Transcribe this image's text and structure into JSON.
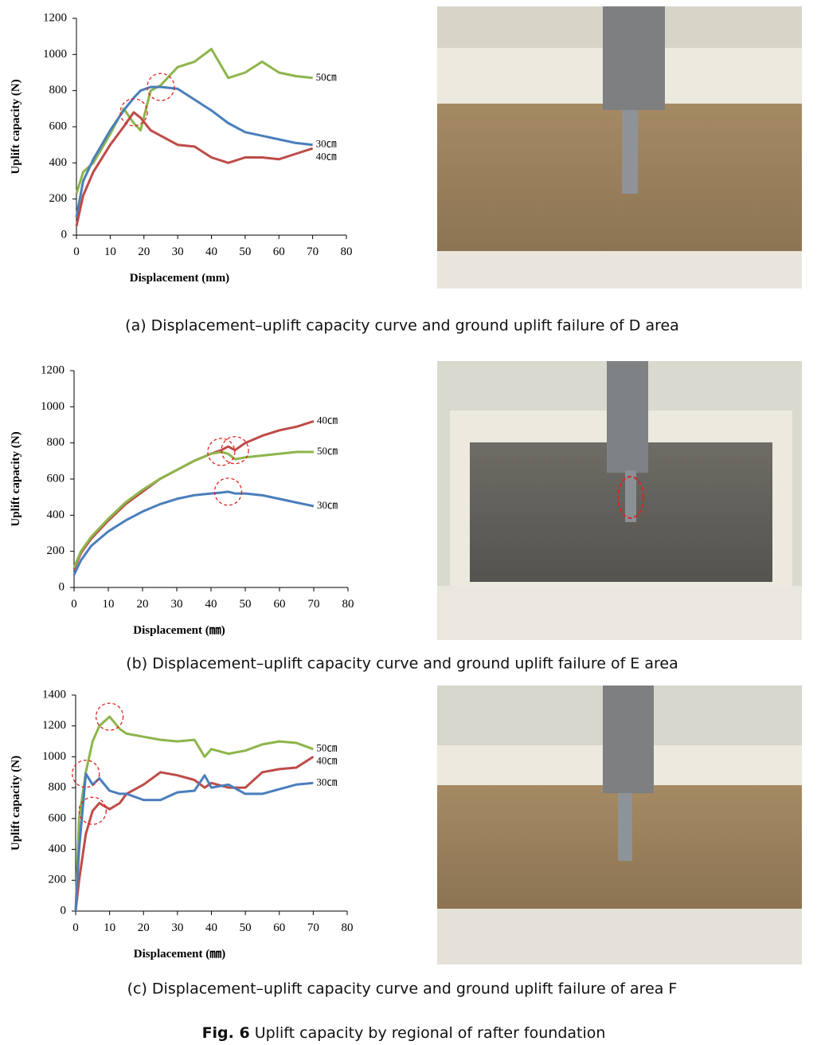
{
  "chart_data": [
    {
      "type": "line",
      "xlabel": "Displacement (mm)",
      "ylabel": "Uplift capacity (N)",
      "x": [
        0,
        2,
        5,
        10,
        14,
        17,
        19,
        22,
        25,
        30,
        35,
        40,
        45,
        50,
        55,
        60,
        65,
        70
      ],
      "xlim": [
        0,
        80
      ],
      "xticks": [
        0,
        10,
        20,
        30,
        40,
        50,
        60,
        70,
        80
      ],
      "ylim": [
        0,
        1200
      ],
      "yticks": [
        0,
        200,
        400,
        600,
        800,
        1000,
        1200
      ],
      "series": [
        {
          "name": "50㎝",
          "color": "#8db54a",
          "values": [
            230,
            350,
            400,
            560,
            700,
            620,
            580,
            800,
            830,
            930,
            960,
            1030,
            870,
            900,
            960,
            900,
            880,
            870
          ]
        },
        {
          "name": "30㎝",
          "color": "#4a7ebb",
          "values": [
            100,
            300,
            420,
            580,
            690,
            760,
            800,
            820,
            820,
            810,
            750,
            690,
            620,
            570,
            550,
            530,
            510,
            500
          ]
        },
        {
          "name": "40㎝",
          "color": "#be4b48",
          "values": [
            50,
            220,
            350,
            500,
            600,
            680,
            650,
            580,
            550,
            500,
            490,
            430,
            400,
            430,
            430,
            420,
            450,
            480
          ]
        }
      ]
    },
    {
      "type": "line",
      "xlabel": "Displacement (㎜)",
      "ylabel": "Uplift capacity (N)",
      "x": [
        0,
        2,
        5,
        10,
        15,
        20,
        25,
        30,
        35,
        40,
        43,
        45,
        47,
        50,
        55,
        60,
        65,
        70
      ],
      "xlim": [
        0,
        80
      ],
      "xticks": [
        0,
        10,
        20,
        30,
        40,
        50,
        60,
        70,
        80
      ],
      "ylim": [
        0,
        1200
      ],
      "yticks": [
        0,
        200,
        400,
        600,
        800,
        1000,
        1200
      ],
      "series": [
        {
          "name": "40㎝",
          "color": "#be4b48",
          "values": [
            100,
            190,
            270,
            370,
            460,
            530,
            600,
            650,
            700,
            740,
            760,
            780,
            760,
            800,
            840,
            870,
            890,
            920
          ]
        },
        {
          "name": "50㎝",
          "color": "#8db54a",
          "values": [
            110,
            200,
            280,
            380,
            470,
            540,
            600,
            650,
            700,
            740,
            750,
            740,
            710,
            720,
            730,
            740,
            750,
            750
          ]
        },
        {
          "name": "30㎝",
          "color": "#4a7ebb",
          "values": [
            70,
            150,
            230,
            310,
            370,
            420,
            460,
            490,
            510,
            520,
            525,
            530,
            520,
            520,
            510,
            490,
            470,
            450
          ]
        }
      ]
    },
    {
      "type": "line",
      "xlabel": "Displacement (㎜)",
      "ylabel": "Uplift capacity (N)",
      "x": [
        0,
        1,
        3,
        5,
        7,
        10,
        13,
        15,
        20,
        25,
        30,
        35,
        38,
        40,
        45,
        50,
        55,
        60,
        65,
        70
      ],
      "xlim": [
        0,
        80
      ],
      "xticks": [
        0,
        10,
        20,
        30,
        40,
        50,
        60,
        70,
        80
      ],
      "ylim": [
        0,
        1400
      ],
      "yticks": [
        0,
        200,
        400,
        600,
        800,
        1000,
        1200,
        1400
      ],
      "series": [
        {
          "name": "50㎝",
          "color": "#8db54a",
          "values": [
            0,
            600,
            900,
            1100,
            1200,
            1260,
            1180,
            1150,
            1130,
            1110,
            1100,
            1110,
            1000,
            1050,
            1020,
            1040,
            1080,
            1100,
            1090,
            1050
          ]
        },
        {
          "name": "40㎝",
          "color": "#be4b48",
          "values": [
            0,
            200,
            500,
            650,
            700,
            660,
            700,
            760,
            820,
            900,
            880,
            850,
            800,
            830,
            800,
            800,
            900,
            920,
            930,
            1000
          ]
        },
        {
          "name": "30㎝",
          "color": "#4a7ebb",
          "values": [
            0,
            400,
            890,
            820,
            860,
            780,
            760,
            760,
            720,
            720,
            770,
            780,
            880,
            800,
            820,
            760,
            760,
            790,
            820,
            830
          ]
        }
      ]
    }
  ],
  "captions": [
    "(a) Displacement–uplift capacity curve and ground uplift failure of D area",
    "(b) Displacement–uplift capacity curve and ground uplift failure of E area",
    "(c) Displacement–uplift capacity curve and ground uplift failure of area F"
  ],
  "figure_caption": {
    "label": "Fig. 6",
    "text": "Uplift capacity by regional of rafter foundation"
  }
}
